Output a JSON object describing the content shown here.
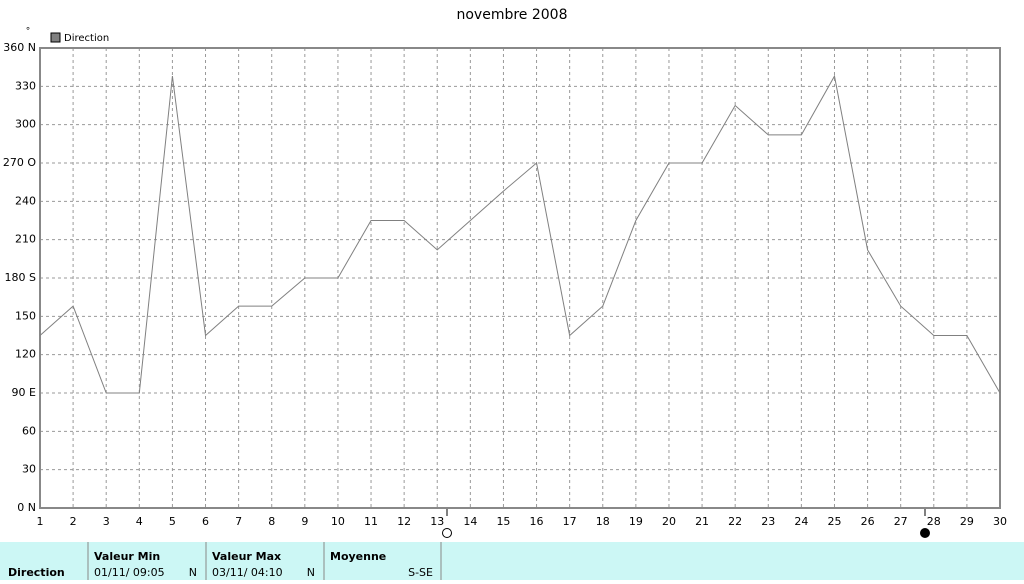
{
  "chart_data": {
    "type": "line",
    "title": "novembre 2008",
    "y_unit": "°",
    "x": [
      1,
      2,
      3,
      4,
      5,
      6,
      7,
      8,
      9,
      10,
      11,
      12,
      13,
      14,
      15,
      16,
      17,
      18,
      19,
      20,
      21,
      22,
      23,
      24,
      25,
      26,
      27,
      28,
      29,
      30
    ],
    "series": [
      {
        "name": "Direction",
        "color": "#808080",
        "values": [
          135,
          158,
          90,
          90,
          338,
          135,
          158,
          158,
          180,
          180,
          225,
          225,
          202,
          225,
          248,
          270,
          135,
          158,
          225,
          270,
          270,
          315,
          292,
          292,
          338,
          202,
          158,
          135,
          135,
          90
        ]
      }
    ],
    "xlim": [
      1,
      30
    ],
    "xticks": [
      1,
      2,
      3,
      4,
      5,
      6,
      7,
      8,
      9,
      10,
      11,
      12,
      13,
      14,
      15,
      16,
      17,
      18,
      19,
      20,
      21,
      22,
      23,
      24,
      25,
      26,
      27,
      28,
      29,
      30
    ],
    "ylim": [
      0,
      360
    ],
    "yticks": [
      {
        "value": 0,
        "label": "0   N"
      },
      30,
      60,
      {
        "value": 90,
        "label": "90   E"
      },
      120,
      150,
      {
        "value": 180,
        "label": "180 S"
      },
      210,
      240,
      {
        "value": 270,
        "label": "270 O"
      },
      300,
      330,
      {
        "value": 360,
        "label": "360 N"
      }
    ],
    "grid": true,
    "legend": "top-left"
  },
  "summary": {
    "label": "Direction",
    "min": {
      "header": "Valeur Min",
      "date": "01/11/  09:05",
      "dir": "N"
    },
    "max": {
      "header": "Valeur Max",
      "date": "03/11/  04:10",
      "dir": "N"
    },
    "mean": {
      "header": "Moyenne",
      "dir": "S-SE"
    }
  }
}
